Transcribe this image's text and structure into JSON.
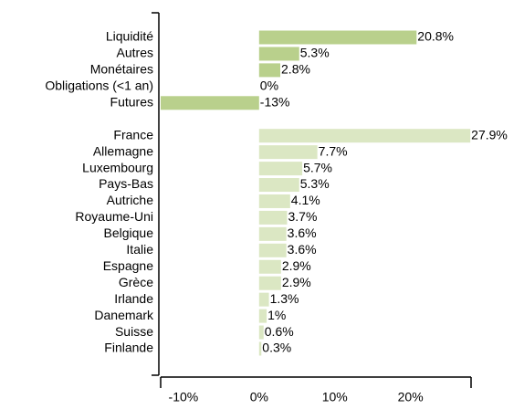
{
  "chart_data": {
    "type": "bar",
    "orientation": "horizontal",
    "categories": [
      "Liquidité",
      "Autres",
      "Monétaires",
      "Obligations (<1 an)",
      "Futures",
      null,
      "France",
      "Allemagne",
      "Luxembourg",
      "Pays-Bas",
      "Autriche",
      "Royaume-Uni",
      "Belgique",
      "Italie",
      "Espagne",
      "Grèce",
      "Irlande",
      "Danemark",
      "Suisse",
      "Finlande"
    ],
    "values": [
      20.8,
      5.3,
      2.8,
      0,
      -13,
      null,
      27.9,
      7.7,
      5.7,
      5.3,
      4.1,
      3.7,
      3.6,
      3.6,
      2.9,
      2.9,
      1.3,
      1,
      0.6,
      0.3
    ],
    "value_labels": [
      "20.8%",
      "5.3%",
      "2.8%",
      "0%",
      "-13%",
      null,
      "27.9%",
      "7.7%",
      "5.7%",
      "5.3%",
      "4.1%",
      "3.7%",
      "3.6%",
      "3.6%",
      "2.9%",
      "2.9%",
      "1.3%",
      "1%",
      "0.6%",
      "0.3%"
    ],
    "colors": [
      "#b9d08c",
      "#b9d08c",
      "#b9d08c",
      "#b9d08c",
      "#b9d08c",
      null,
      "#dbe7c3",
      "#dbe7c3",
      "#dbe7c3",
      "#dbe7c3",
      "#dbe7c3",
      "#dbe7c3",
      "#dbe7c3",
      "#dbe7c3",
      "#dbe7c3",
      "#dbe7c3",
      "#dbe7c3",
      "#dbe7c3",
      "#dbe7c3",
      "#dbe7c3"
    ],
    "xlim": [
      -13,
      28
    ],
    "xticks": [
      {
        "value": -10,
        "label": "-10%"
      },
      {
        "value": 0,
        "label": "0%"
      },
      {
        "value": 10,
        "label": "10%"
      },
      {
        "value": 20,
        "label": "20%"
      }
    ],
    "grid": false
  }
}
